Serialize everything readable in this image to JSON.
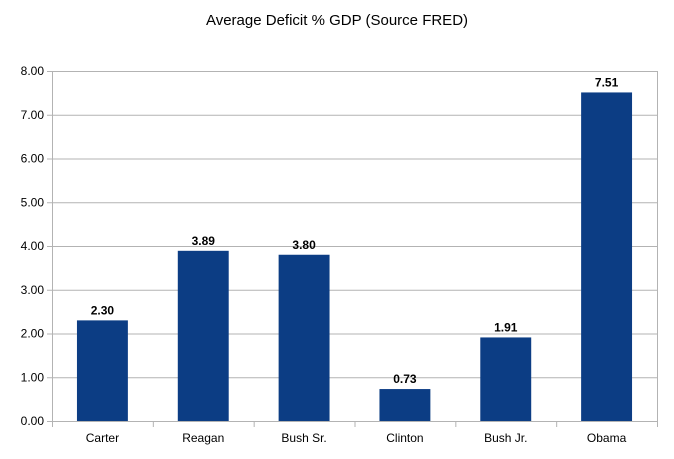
{
  "chart_data": {
    "type": "bar",
    "title": "Average Deficit % GDP (Source FRED)",
    "xlabel": "",
    "ylabel": "",
    "categories": [
      "Carter",
      "Reagan",
      "Bush Sr.",
      "Clinton",
      "Bush Jr.",
      "Obama"
    ],
    "values": [
      2.3,
      3.89,
      3.8,
      0.73,
      1.91,
      7.51
    ],
    "data_labels": [
      "2.30",
      "3.89",
      "3.80",
      "0.73",
      "1.91",
      "7.51"
    ],
    "ylim": [
      0,
      8
    ],
    "yticks": [
      0,
      1,
      2,
      3,
      4,
      5,
      6,
      7,
      8
    ],
    "ytick_labels": [
      "0.00",
      "1.00",
      "2.00",
      "3.00",
      "4.00",
      "5.00",
      "6.00",
      "7.00",
      "8.00"
    ],
    "grid": true,
    "legend": "none",
    "colors": {
      "bar": "#0c3d84",
      "grid": "#b3b3b3",
      "axis": "#b3b3b3",
      "text": "#000000"
    }
  }
}
